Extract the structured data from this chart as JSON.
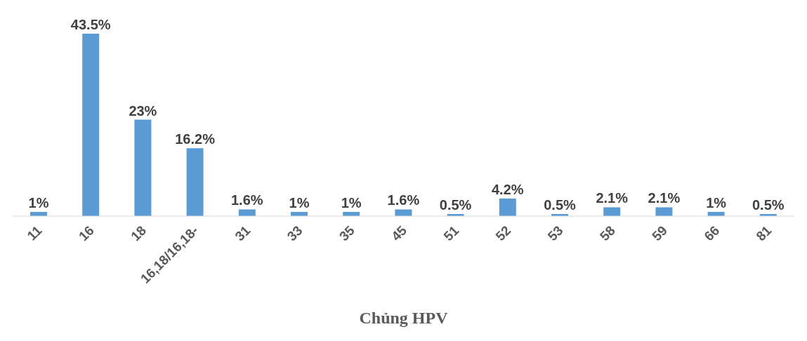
{
  "chart_data": {
    "type": "bar",
    "xlabel": "Chủng HPV",
    "categories": [
      "11",
      "16",
      "18",
      "16,18/16,18-",
      "31",
      "33",
      "35",
      "45",
      "51",
      "52",
      "53",
      "58",
      "59",
      "66",
      "81"
    ],
    "values": [
      1,
      43.5,
      23,
      16.2,
      1.6,
      1,
      1,
      1.6,
      0.5,
      4.2,
      0.5,
      2.1,
      2.1,
      1,
      0.5
    ],
    "value_labels": [
      "1%",
      "43.5%",
      "23%",
      "16.2%",
      "1.6%",
      "1%",
      "1%",
      "1.6%",
      "0.5%",
      "4.2%",
      "0.5%",
      "2.1%",
      "2.1%",
      "1%",
      "0.5%"
    ],
    "color": "#5b9bd5",
    "grid": false,
    "legend": false
  }
}
